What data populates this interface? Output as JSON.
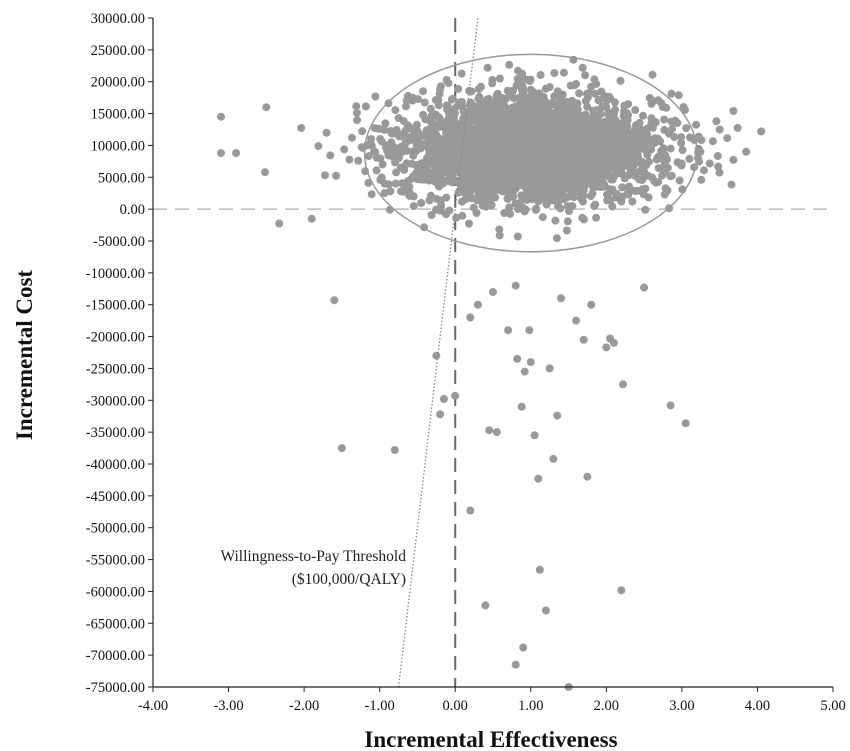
{
  "chart_data": {
    "type": "scatter",
    "title": "",
    "xlabel": "Incremental Effectiveness",
    "ylabel": "Incremental Cost",
    "xlim": [
      -4.0,
      5.0
    ],
    "ylim": [
      -75000,
      30000
    ],
    "x_ticks": [
      "-4.00",
      "-3.00",
      "-2.00",
      "-1.00",
      "0.00",
      "1.00",
      "2.00",
      "3.00",
      "4.00",
      "5.00"
    ],
    "y_ticks": [
      "30000.00",
      "25000.00",
      "20000.00",
      "15000.00",
      "10000.00",
      "5000.00",
      "0.00",
      "-5000.00",
      "-10000.00",
      "-15000.00",
      "-20000.00",
      "-25000.00",
      "-30000.00",
      "-35000.00",
      "-40000.00",
      "-45000.00",
      "-50000.00",
      "-55000.00",
      "-60000.00",
      "-65000.00",
      "-70000.00",
      "-75000.00"
    ],
    "grid": false,
    "point_color": "#999999",
    "cluster": {
      "center": [
        1.0,
        9500
      ],
      "sd": [
        0.85,
        4200
      ],
      "n": 3000
    },
    "outliers": [
      [
        -3.1,
        14500
      ],
      [
        -3.1,
        8800
      ],
      [
        -2.9,
        8800
      ],
      [
        -2.5,
        16000
      ],
      [
        -1.9,
        -1500
      ],
      [
        -1.6,
        -14300
      ],
      [
        -1.5,
        -37500
      ],
      [
        -0.8,
        -37800
      ],
      [
        -0.25,
        -23000
      ],
      [
        -0.2,
        -32200
      ],
      [
        -0.15,
        -29800
      ],
      [
        0.0,
        -29300
      ],
      [
        0.2,
        -17000
      ],
      [
        0.2,
        -47300
      ],
      [
        0.3,
        -15000
      ],
      [
        0.4,
        -62200
      ],
      [
        0.45,
        -34700
      ],
      [
        0.55,
        -35000
      ],
      [
        0.5,
        -13000
      ],
      [
        0.7,
        -19000
      ],
      [
        0.8,
        -12000
      ],
      [
        0.8,
        -71500
      ],
      [
        0.82,
        -23500
      ],
      [
        0.88,
        -31000
      ],
      [
        0.9,
        -68800
      ],
      [
        0.92,
        -25500
      ],
      [
        0.98,
        -19000
      ],
      [
        1.0,
        -24000
      ],
      [
        1.05,
        -35500
      ],
      [
        1.1,
        -42300
      ],
      [
        1.12,
        -56600
      ],
      [
        1.2,
        -63000
      ],
      [
        1.25,
        -25000
      ],
      [
        1.3,
        -39200
      ],
      [
        1.35,
        -32400
      ],
      [
        1.4,
        -14000
      ],
      [
        1.5,
        -75000
      ],
      [
        1.6,
        -17500
      ],
      [
        1.7,
        -20500
      ],
      [
        1.75,
        -42000
      ],
      [
        1.8,
        -15000
      ],
      [
        2.0,
        -21700
      ],
      [
        2.05,
        -20300
      ],
      [
        2.1,
        -21000
      ],
      [
        2.2,
        -59800
      ],
      [
        2.22,
        -27500
      ],
      [
        2.5,
        -12300
      ],
      [
        2.85,
        -30800
      ],
      [
        3.05,
        -33600
      ],
      [
        4.05,
        12200
      ],
      [
        3.85,
        9000
      ],
      [
        3.5,
        12500
      ]
    ],
    "ellipse": {
      "center": [
        1.0,
        8800
      ],
      "rx": 2.2,
      "ry": 15500,
      "color": "#999999"
    },
    "reference_lines": [
      {
        "type": "vertical",
        "x": 0,
        "style": "dashed",
        "color": "#666666"
      },
      {
        "type": "horizontal",
        "y": 0,
        "style": "dashed",
        "color": "#bbbbbb"
      }
    ],
    "wtp_threshold": {
      "value_per_qaly": 100000,
      "lines": [
        [
          [
            -0.75,
            -75000
          ],
          [
            0.3,
            30000
          ]
        ]
      ],
      "color": "#888888",
      "style": "dotted"
    },
    "annotation": {
      "lines": [
        "Willingness-to-Pay Threshold",
        "($100,000/QALY)"
      ]
    }
  }
}
